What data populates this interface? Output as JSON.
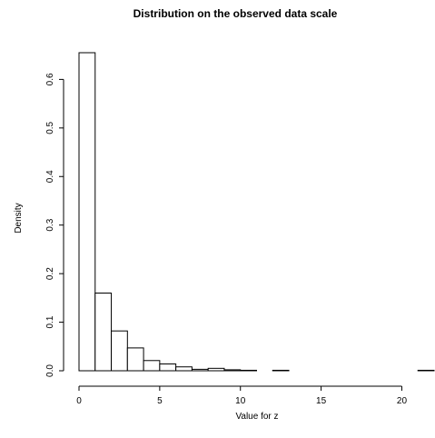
{
  "chart_data": {
    "type": "bar",
    "title": "Distribution on the observed data scale",
    "xlabel": "Value for z",
    "ylabel": "Density",
    "xlim": [
      0,
      22
    ],
    "ylim": [
      0,
      0.655
    ],
    "bin_width": 1,
    "bins": [
      {
        "x0": 0,
        "x1": 1,
        "density": 0.655
      },
      {
        "x0": 1,
        "x1": 2,
        "density": 0.16
      },
      {
        "x0": 2,
        "x1": 3,
        "density": 0.082
      },
      {
        "x0": 3,
        "x1": 4,
        "density": 0.047
      },
      {
        "x0": 4,
        "x1": 5,
        "density": 0.021
      },
      {
        "x0": 5,
        "x1": 6,
        "density": 0.014
      },
      {
        "x0": 6,
        "x1": 7,
        "density": 0.008
      },
      {
        "x0": 7,
        "x1": 8,
        "density": 0.003
      },
      {
        "x0": 8,
        "x1": 9,
        "density": 0.005
      },
      {
        "x0": 9,
        "x1": 10,
        "density": 0.002
      },
      {
        "x0": 10,
        "x1": 11,
        "density": 0.001
      },
      {
        "x0": 11,
        "x1": 12,
        "density": 0.0
      },
      {
        "x0": 12,
        "x1": 13,
        "density": 0.001
      },
      {
        "x0": 13,
        "x1": 14,
        "density": 0.0
      },
      {
        "x0": 14,
        "x1": 15,
        "density": 0.0
      },
      {
        "x0": 15,
        "x1": 16,
        "density": 0.0
      },
      {
        "x0": 16,
        "x1": 17,
        "density": 0.0
      },
      {
        "x0": 17,
        "x1": 18,
        "density": 0.0
      },
      {
        "x0": 18,
        "x1": 19,
        "density": 0.0
      },
      {
        "x0": 19,
        "x1": 20,
        "density": 0.0
      },
      {
        "x0": 20,
        "x1": 21,
        "density": 0.0
      },
      {
        "x0": 21,
        "x1": 22,
        "density": 0.001
      }
    ],
    "x_ticks": [
      0,
      5,
      10,
      15,
      20
    ],
    "x_tick_labels": [
      "0",
      "5",
      "10",
      "15",
      "20"
    ],
    "y_ticks": [
      0.0,
      0.1,
      0.2,
      0.3,
      0.4,
      0.5,
      0.6
    ],
    "y_tick_labels": [
      "0.0",
      "0.1",
      "0.2",
      "0.3",
      "0.4",
      "0.5",
      "0.6"
    ],
    "grid": false,
    "legend": "none"
  }
}
